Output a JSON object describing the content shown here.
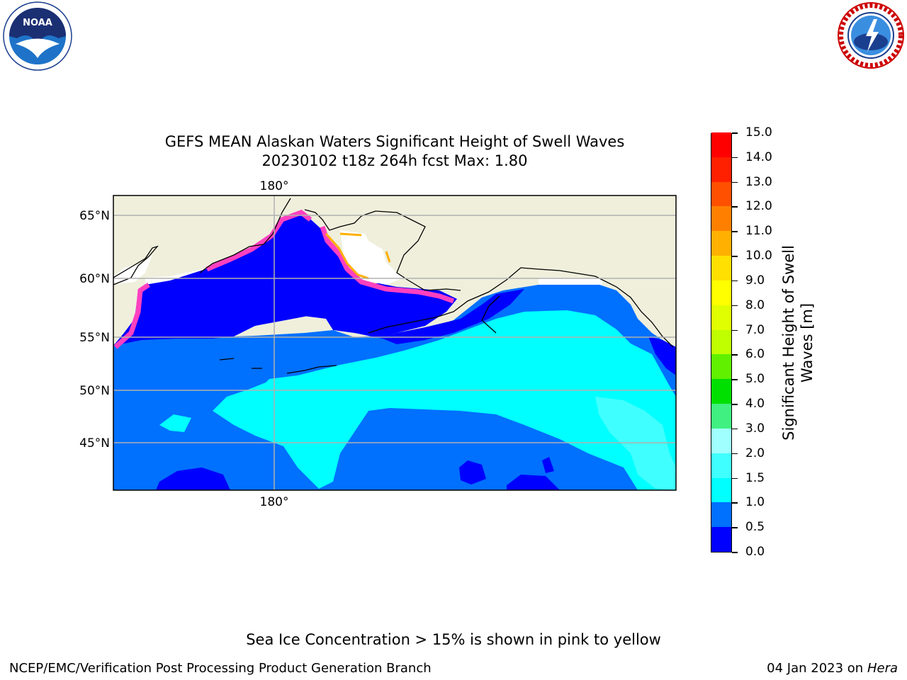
{
  "title_line1": "GEFS MEAN Alaskan Waters Significant Height of Swell Waves",
  "title_line2": "20230102 t18z 264h fcst    Max: 1.80",
  "map": {
    "lon_label_top": "180°",
    "lon_label_bottom": "180°",
    "lat_labels": [
      "65°N",
      "60°N",
      "55°N",
      "50°N",
      "45°N"
    ]
  },
  "colorbar": {
    "title": "Significant Height of Swell Waves [m]",
    "levels": [
      "0.0",
      "0.5",
      "1.0",
      "1.5",
      "2.0",
      "3.0",
      "4.0",
      "5.0",
      "6.0",
      "7.0",
      "8.0",
      "9.0",
      "10.0",
      "11.0",
      "12.0",
      "13.0",
      "14.0",
      "15.0"
    ],
    "colors": [
      "#0000ff",
      "#0070ff",
      "#00ffff",
      "#40ffff",
      "#a0ffff",
      "#40f080",
      "#00e000",
      "#60f000",
      "#c0ff00",
      "#e0ff00",
      "#ffff00",
      "#ffe000",
      "#ffb000",
      "#ff8000",
      "#ff5000",
      "#ff2000",
      "#ff0000"
    ]
  },
  "note": "Sea Ice Concentration > 15% is shown in pink to yellow",
  "footer_left": "NCEP/EMC/Verification Post Processing Product Generation Branch",
  "footer_right_date": "04 Jan 2023 on",
  "footer_right_host": "Hera",
  "logos": {
    "noaa_text": "NOAA",
    "nws_text": "NATIONAL WEATHER SERVICE"
  }
}
